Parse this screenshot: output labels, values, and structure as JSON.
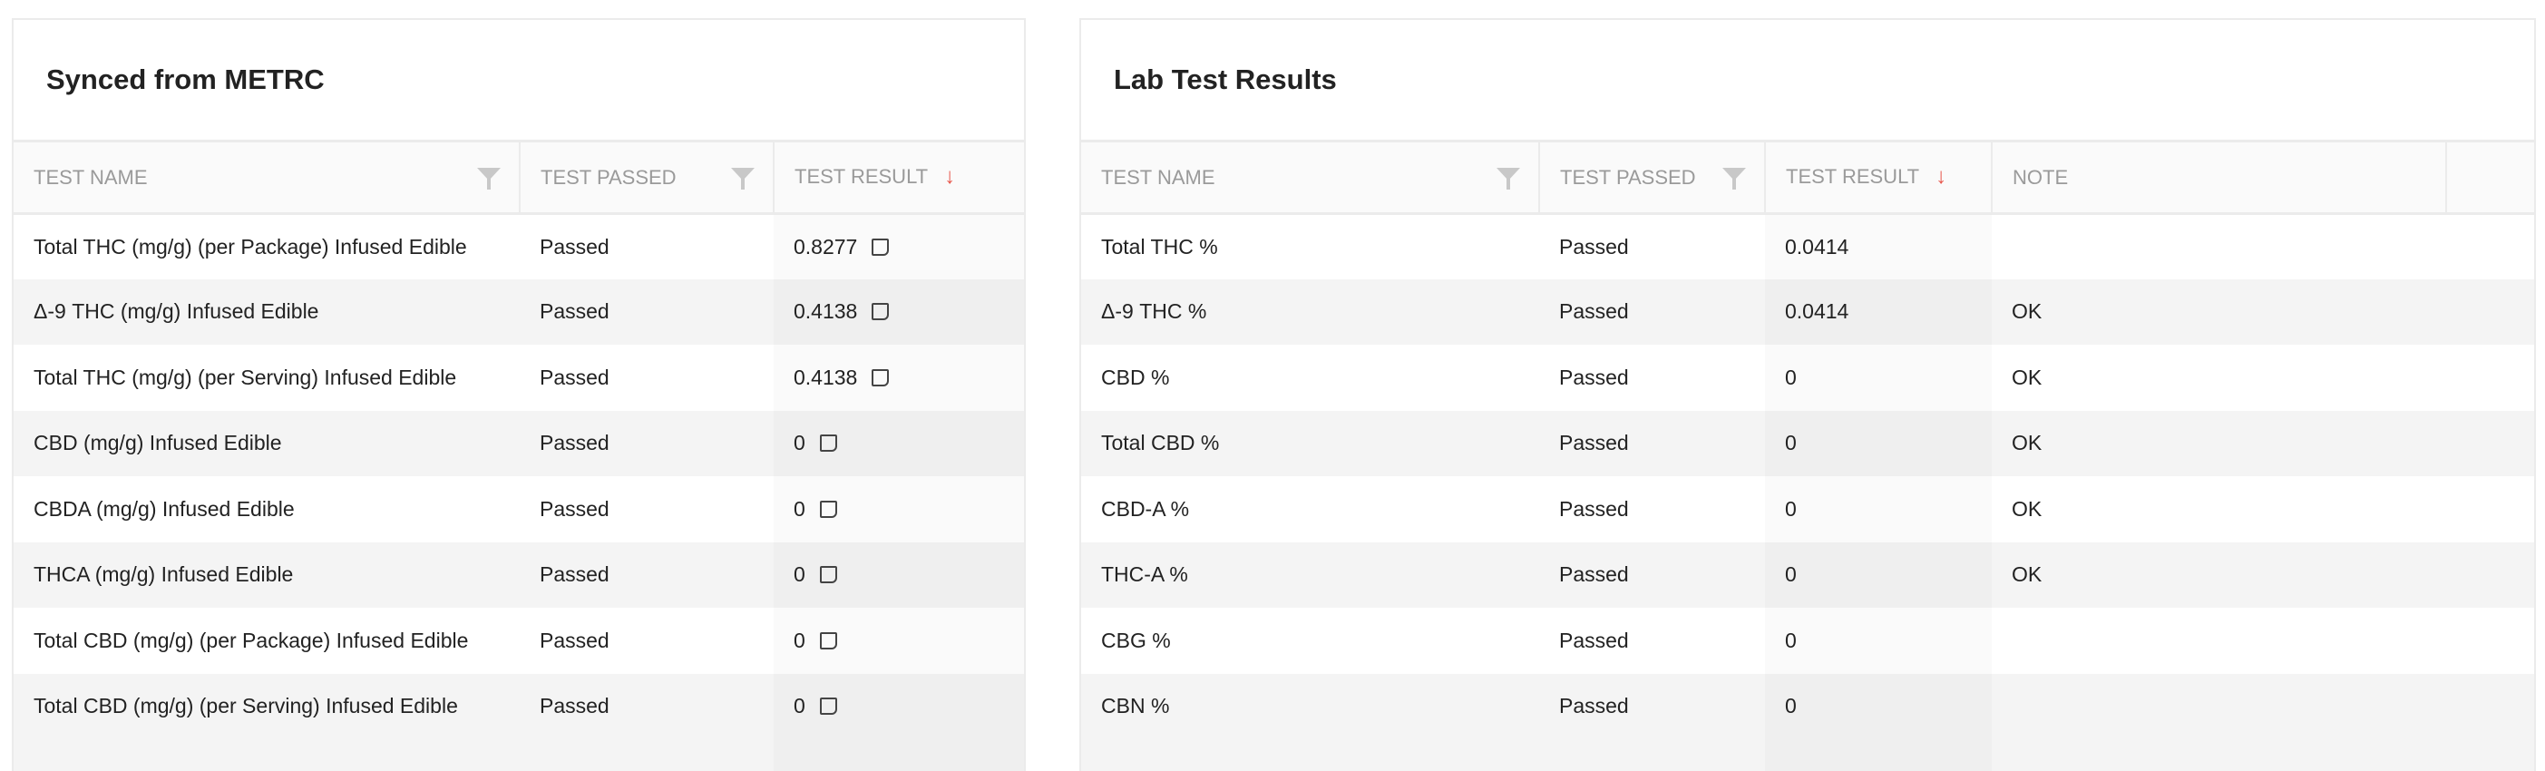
{
  "metrc": {
    "title": "Synced from METRC",
    "columns": [
      "TEST NAME",
      "TEST PASSED",
      "TEST RESULT"
    ],
    "rows": [
      {
        "name": "Total THC (mg/g) (per Package) Infused Edible",
        "passed": "Passed",
        "result": "0.8277"
      },
      {
        "name": "Δ-9 THC (mg/g) Infused Edible",
        "passed": "Passed",
        "result": "0.4138"
      },
      {
        "name": "Total THC (mg/g) (per Serving) Infused Edible",
        "passed": "Passed",
        "result": "0.4138"
      },
      {
        "name": "CBD (mg/g) Infused Edible",
        "passed": "Passed",
        "result": "0"
      },
      {
        "name": "CBDA (mg/g) Infused Edible",
        "passed": "Passed",
        "result": "0"
      },
      {
        "name": "THCA (mg/g) Infused Edible",
        "passed": "Passed",
        "result": "0"
      },
      {
        "name": "Total CBD (mg/g) (per Package) Infused Edible",
        "passed": "Passed",
        "result": "0"
      },
      {
        "name": "Total CBD (mg/g) (per Serving) Infused Edible",
        "passed": "Passed",
        "result": "0"
      }
    ]
  },
  "lab": {
    "title": "Lab Test Results",
    "columns": [
      "TEST NAME",
      "TEST PASSED",
      "TEST RESULT",
      "NOTE"
    ],
    "rows": [
      {
        "name": "Total THC %",
        "passed": "Passed",
        "result": "0.0414",
        "note": ""
      },
      {
        "name": "Δ-9 THC %",
        "passed": "Passed",
        "result": "0.0414",
        "note": "OK"
      },
      {
        "name": "CBD %",
        "passed": "Passed",
        "result": "0",
        "note": "OK"
      },
      {
        "name": "Total CBD %",
        "passed": "Passed",
        "result": "0",
        "note": "OK"
      },
      {
        "name": "CBD-A %",
        "passed": "Passed",
        "result": "0",
        "note": "OK"
      },
      {
        "name": "THC-A %",
        "passed": "Passed",
        "result": "0",
        "note": "OK"
      },
      {
        "name": "CBG %",
        "passed": "Passed",
        "result": "0",
        "note": ""
      },
      {
        "name": "CBN %",
        "passed": "Passed",
        "result": "0",
        "note": ""
      }
    ]
  },
  "icons": {
    "filter": "filter-icon",
    "sort": "sort-descending-arrow-icon",
    "note": "note-icon"
  },
  "colors": {
    "sort_arrow": "#e8574c",
    "header_text": "#9a9a9a"
  }
}
